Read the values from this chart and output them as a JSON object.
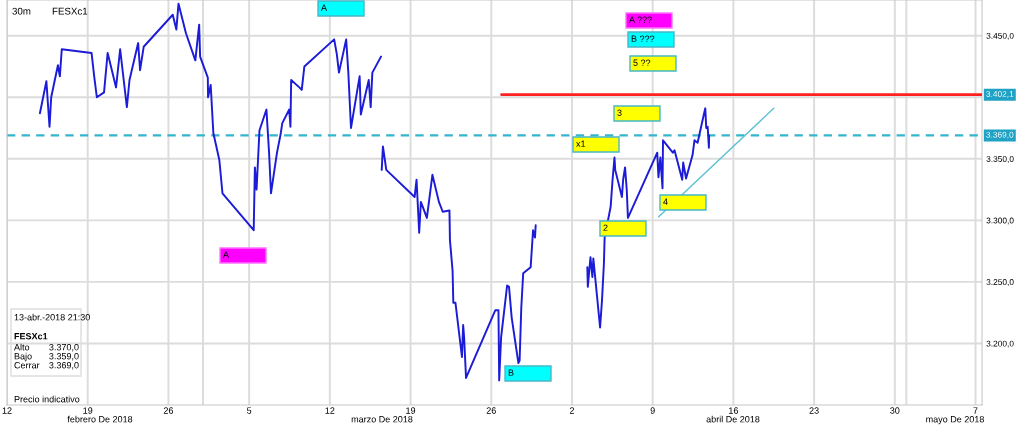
{
  "chart_data": {
    "type": "line",
    "title": "30m",
    "subtitle": "FESXc1",
    "xlim": [
      "2018-02-12",
      "2018-05-07T13:30"
    ],
    "ylim": [
      3150,
      3479
    ],
    "xticks": [
      {
        "value": "2018-02-12",
        "label": "12"
      },
      {
        "value": "2018-02-19",
        "label": "19"
      },
      {
        "value": "2018-02-26",
        "label": "26"
      },
      {
        "value": "2018-03-01",
        "label": null
      },
      {
        "value": "2018-03-05",
        "label": "5"
      },
      {
        "value": "2018-03-12",
        "label": "12"
      },
      {
        "value": "2018-03-19",
        "label": "19"
      },
      {
        "value": "2018-03-26",
        "label": "26"
      },
      {
        "value": "2018-04-02",
        "label": "2"
      },
      {
        "value": "2018-04-09",
        "label": "9"
      },
      {
        "value": "2018-04-16",
        "label": "16"
      },
      {
        "value": "2018-04-23",
        "label": "23"
      },
      {
        "value": "2018-04-30",
        "label": "30"
      },
      {
        "value": "2018-05-01",
        "label": null
      },
      {
        "value": "2018-05-07",
        "label": "7"
      }
    ],
    "yticks": [
      {
        "value": 3200,
        "label": "3.200,0"
      },
      {
        "value": 3250,
        "label": "3.250,0"
      },
      {
        "value": 3300,
        "label": "3.300,0"
      },
      {
        "value": 3350,
        "label": "3.350,0"
      },
      {
        "value": 3400,
        "label": null
      },
      {
        "value": 3450,
        "label": "3.450,0"
      }
    ],
    "grid": true,
    "series": [
      {
        "color": "#1c1cd8",
        "x": [
          "2018-02-14T20:30",
          "2018-02-15T10:00",
          "2018-02-15T16:30",
          "2018-02-15T20:00",
          "2018-02-16T10:00",
          "2018-02-16T14:00",
          "2018-02-16T18:00",
          "2018-02-19T08:00",
          "2018-02-19T13:30",
          "2018-02-19T19:00",
          "2018-02-20T10:00",
          "2018-02-20T17:30",
          "2018-02-21T11:00",
          "2018-02-21T19:30",
          "2018-02-22T09:30",
          "2018-02-22T15:00",
          "2018-02-23T09:00",
          "2018-02-23T13:00",
          "2018-02-23T20:30",
          "2018-02-26T09:00",
          "2018-02-26T16:30",
          "2018-02-26T21:00",
          "2018-02-27T12:30",
          "2018-02-28T08:00",
          "2018-02-28T16:00",
          "2018-02-28T18:00",
          "2018-03-01T10:00",
          "2018-03-01T10:30",
          "2018-03-01T16:00",
          "2018-03-01T21:30",
          "2018-03-02T10:00",
          "2018-03-02T16:30",
          "2018-03-05T09:30",
          "2018-03-05T12:00",
          "2018-03-05T15:30",
          "2018-03-05T21:30",
          "2018-03-06T12:00",
          "2018-03-06T17:30",
          "2018-03-06T21:30",
          "2018-03-07T10:00",
          "2018-03-07T18:00",
          "2018-03-07T21:00",
          "2018-03-08T11:30",
          "2018-03-08T14:00",
          "2018-03-08T15:30",
          "2018-03-09T08:30",
          "2018-03-09T13:30",
          "2018-03-09T19:00",
          "2018-03-12T09:00",
          "2018-03-12T14:30",
          "2018-03-12T19:00",
          "2018-03-13T10:00",
          "2018-03-13T14:30",
          "2018-03-13T20:00",
          "2018-03-14T14:00",
          "2018-03-14T16:30",
          "2018-03-15T09:00",
          "2018-03-15T13:00",
          "2018-03-15T16:30",
          "2018-03-16T10:30",
          "2018-03-16T11:30",
          "2018-03-16T12:00",
          "2018-03-16T14:30",
          "2018-03-16T21:30",
          "2018-03-19T08:30",
          "2018-03-19T12:30",
          "2018-03-19T18:00",
          "2018-03-19T21:30",
          "2018-03-20T10:00",
          "2018-03-20T21:30",
          "2018-03-21T11:00",
          "2018-03-21T19:00",
          "2018-03-22T09:00",
          "2018-03-22T10:00",
          "2018-03-22T15:30",
          "2018-03-22T17:00",
          "2018-03-22T21:30",
          "2018-03-23T11:00",
          "2018-03-23T13:30",
          "2018-03-23T15:30",
          "2018-03-23T19:30",
          "2018-03-26T08:30",
          "2018-03-26T15:00",
          "2018-03-26T16:30",
          "2018-03-26T20:30",
          "2018-03-27T09:00",
          "2018-03-27T13:00",
          "2018-03-27T18:30",
          "2018-03-28T08:30",
          "2018-03-28T11:00",
          "2018-03-28T14:30",
          "2018-03-28T18:30",
          "2018-03-29T10:00",
          "2018-03-29T15:00",
          "2018-03-29T19:00",
          "2018-03-29T20:30",
          "2018-03-31T00:00",
          "2018-04-03T08:00",
          "2018-04-03T09:00",
          "2018-04-03T14:30",
          "2018-04-03T18:30",
          "2018-04-03T20:30",
          "2018-04-04T10:30",
          "2018-04-04T14:30",
          "2018-04-04T18:30",
          "2018-04-04T20:00",
          "2018-04-05T08:30",
          "2018-04-05T12:30",
          "2018-04-05T16:30",
          "2018-04-05T18:00",
          "2018-04-06T08:00",
          "2018-04-06T10:30",
          "2018-04-06T14:30",
          "2018-04-06T18:00",
          "2018-04-06T20:30",
          "2018-04-09T09:30",
          "2018-04-09T12:00",
          "2018-04-09T16:00",
          "2018-04-09T20:30",
          "2018-04-09T21:30",
          "2018-04-10T18:00",
          "2018-04-10T21:30",
          "2018-04-11T13:30",
          "2018-04-11T15:30",
          "2018-04-11T21:30",
          "2018-04-12T11:00",
          "2018-04-12T15:00",
          "2018-04-12T21:30",
          "2018-04-13T10:30",
          "2018-04-13T13:30",
          "2018-04-13T15:30",
          "2018-04-13T18:30",
          "2018-04-13T21:00",
          "2018-04-13T21:30"
        ],
        "values": [
          3387,
          3413,
          3376,
          3400,
          3426,
          3417,
          3439,
          3436,
          3417,
          3400,
          3404,
          3436,
          3408,
          3439,
          3392,
          3414,
          3444,
          3422,
          3441,
          3467,
          3455,
          3476,
          3452,
          3430,
          3459,
          3433,
          3416,
          3400,
          3410,
          3371,
          3349,
          3322,
          3292,
          3343,
          3325,
          3373,
          3390,
          3355,
          3322,
          3355,
          3371,
          3379,
          3390,
          3376,
          3414,
          3408,
          3406,
          3425,
          3447,
          3435,
          3420,
          3447,
          3420,
          3375,
          3417,
          3386,
          3414,
          3392,
          3420,
          3433,
          null,
          3341,
          3360,
          3341,
          3319,
          3333,
          3290,
          3315,
          3302,
          3337,
          3315,
          3307,
          3308,
          3284,
          3259,
          3233,
          3233,
          3189,
          3215,
          3205,
          3172,
          3227,
          3227,
          3170,
          3205,
          3247,
          3246,
          3221,
          3184,
          3186,
          3229,
          3257,
          3262,
          3292,
          3286,
          3296,
          null,
          3262,
          3246,
          3270,
          3254,
          3269,
          3213,
          3235,
          3265,
          3286,
          3311,
          3333,
          3351,
          3341,
          3319,
          3333,
          3343,
          3325,
          3302,
          3355,
          3335,
          3351,
          3326,
          3365,
          3355,
          3357,
          3333,
          3347,
          3334,
          3353,
          3365,
          3363,
          3386,
          3391,
          3375,
          3376,
          3359,
          3369
        ]
      },
      {
        "type": "line",
        "color": "#5cc0d2",
        "x": [
          "2018-04-09T12:30",
          "2018-04-19T12:00"
        ],
        "values": [
          3303,
          3391
        ]
      },
      {
        "type": "line",
        "color": "#ff2020",
        "x": [
          "2018-03-26T21:30",
          "2018-05-07T13:30"
        ],
        "values": [
          3402.1,
          3402.1
        ],
        "value_labels": [
          null,
          "3.402,1"
        ]
      }
    ],
    "ref_lines": [
      {
        "axis": "y",
        "value": 3369.0,
        "label": "3.369,0",
        "color": "#33b5cc",
        "line_style": "dashed"
      }
    ],
    "annotations": [
      "A",
      "A",
      "B",
      "x1",
      "3",
      "2",
      "4",
      "5 ??",
      "B ???",
      "A ???",
      "13-abr.-2018 21:30",
      "FESXc1",
      "Alto",
      "3.370,0",
      "Bajo",
      "3.359,0",
      "Cerrar",
      "3.369,0",
      "Precio indicativo",
      "febrero De 2018",
      "marzo De 2018",
      "abril De 2018",
      "mayo De 2018"
    ]
  }
}
